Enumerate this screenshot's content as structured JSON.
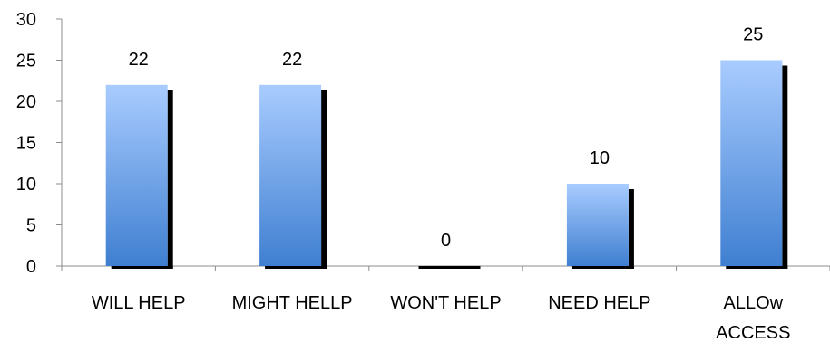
{
  "chart_data": {
    "type": "bar",
    "title": "",
    "xlabel": "",
    "ylabel": "",
    "categories": [
      [
        "WILL HELP"
      ],
      [
        "MIGHT HELLP"
      ],
      [
        "WON'T HELP"
      ],
      [
        "NEED HELP"
      ],
      [
        "ALLOw",
        "ACCESS"
      ]
    ],
    "values": [
      22,
      22,
      0,
      10,
      25
    ],
    "ylim": [
      0,
      30
    ],
    "yticks": [
      0,
      5,
      10,
      15,
      20,
      25,
      30
    ],
    "grid": false,
    "legend": "none",
    "colors": {
      "bar_top": "#a9ccff",
      "bar_bottom": "#3f7fd1",
      "shadow": "#000000",
      "axis": "#8c8c8c"
    }
  }
}
